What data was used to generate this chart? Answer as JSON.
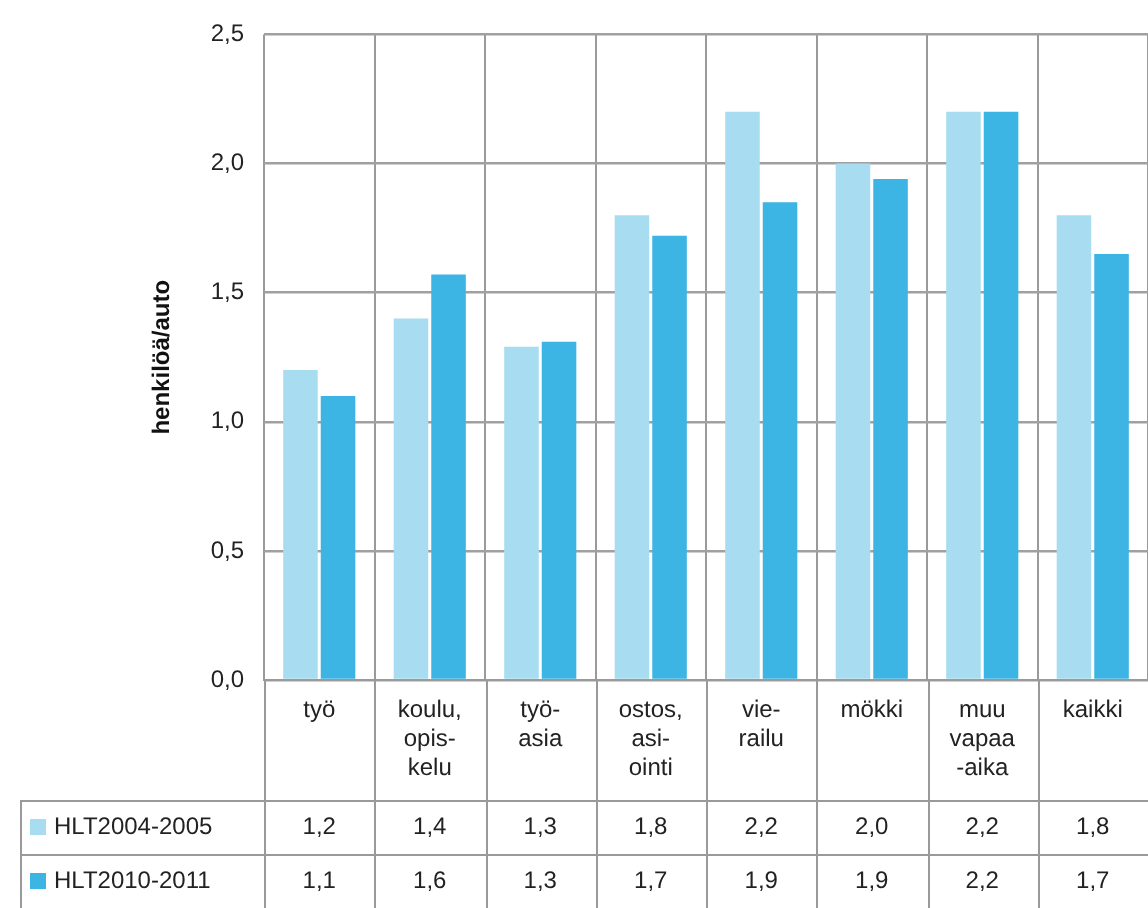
{
  "chart_data": {
    "type": "bar",
    "ylabel": "henkilöä/auto",
    "categories": [
      "työ",
      "koulu,\nopis-\nkelu",
      "työ-\nasia",
      "ostos,\nasi-\nointi",
      "vie-\nrailu",
      "mökki",
      "muu\nvapaa\n-aika",
      "kaikki"
    ],
    "series": [
      {
        "name": "HLT2004-2005",
        "color": "#a8ddf1",
        "values": [
          1.2,
          1.4,
          1.29,
          1.8,
          2.2,
          2.0,
          2.2,
          1.8
        ],
        "value_labels": [
          "1,2",
          "1,4",
          "1,3",
          "1,8",
          "2,2",
          "2,0",
          "2,2",
          "1,8"
        ]
      },
      {
        "name": "HLT2010-2011",
        "color": "#3db5e4",
        "values": [
          1.1,
          1.57,
          1.31,
          1.72,
          1.85,
          1.94,
          2.2,
          1.65
        ],
        "value_labels": [
          "1,1",
          "1,6",
          "1,3",
          "1,7",
          "1,9",
          "1,9",
          "2,2",
          "1,7"
        ]
      }
    ],
    "ylim": [
      0,
      2.5
    ],
    "yticks": [
      {
        "value": 0,
        "label": "0,0"
      },
      {
        "value": 0.5,
        "label": "0,5"
      },
      {
        "value": 1,
        "label": "1,0"
      },
      {
        "value": 1.5,
        "label": "1,5"
      },
      {
        "value": 2,
        "label": "2,0"
      },
      {
        "value": 2.5,
        "label": "2,5"
      }
    ],
    "grid": true,
    "legend": "bottom"
  }
}
